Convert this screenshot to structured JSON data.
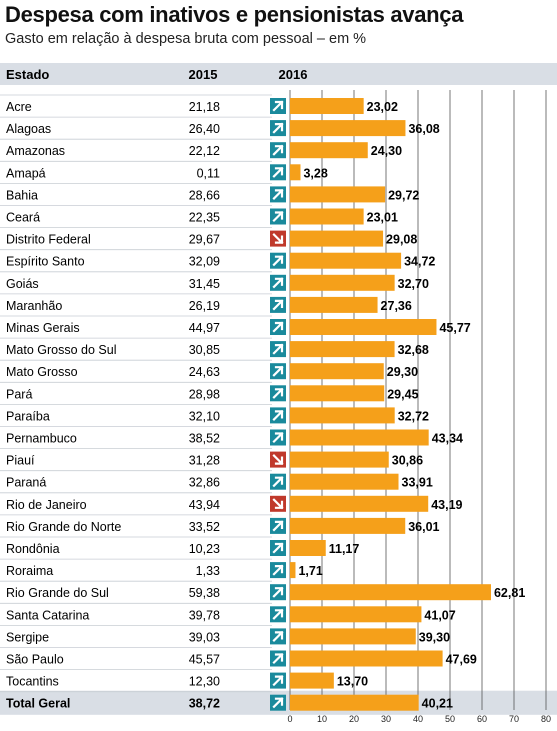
{
  "chart_data": {
    "type": "bar",
    "title": "Despesa com inativos e pensionistas avança",
    "subtitle": "Gasto em relação à despesa bruta com pessoal – em %",
    "columns": {
      "state": "Estado",
      "y2015": "2015",
      "y2016": "2016"
    },
    "xlim": [
      0,
      80
    ],
    "xticks": [
      "0",
      "10",
      "20",
      "30",
      "40",
      "50",
      "60",
      "70",
      "80"
    ],
    "grid": true,
    "colors": {
      "bar": "#f5a01a",
      "up": "#1a8a9c",
      "down": "#c0392b",
      "header_bg": "#d9dee5",
      "total_bg": "#d9dee5"
    },
    "rows": [
      {
        "state": "Acre",
        "v2015": 21.18,
        "v2015_label": "21,18",
        "v2016": 23.02,
        "v2016_label": "23,02",
        "trend": "up"
      },
      {
        "state": "Alagoas",
        "v2015": 26.4,
        "v2015_label": "26,40",
        "v2016": 36.08,
        "v2016_label": "36,08",
        "trend": "up"
      },
      {
        "state": "Amazonas",
        "v2015": 22.12,
        "v2015_label": "22,12",
        "v2016": 24.3,
        "v2016_label": "24,30",
        "trend": "up"
      },
      {
        "state": "Amapá",
        "v2015": 0.11,
        "v2015_label": "0,11",
        "v2016": 3.28,
        "v2016_label": "3,28",
        "trend": "up"
      },
      {
        "state": "Bahia",
        "v2015": 28.66,
        "v2015_label": "28,66",
        "v2016": 29.72,
        "v2016_label": "29,72",
        "trend": "up"
      },
      {
        "state": "Ceará",
        "v2015": 22.35,
        "v2015_label": "22,35",
        "v2016": 23.01,
        "v2016_label": "23,01",
        "trend": "up"
      },
      {
        "state": "Distrito Federal",
        "v2015": 29.67,
        "v2015_label": "29,67",
        "v2016": 29.08,
        "v2016_label": "29,08",
        "trend": "down"
      },
      {
        "state": "Espírito Santo",
        "v2015": 32.09,
        "v2015_label": "32,09",
        "v2016": 34.72,
        "v2016_label": "34,72",
        "trend": "up"
      },
      {
        "state": "Goiás",
        "v2015": 31.45,
        "v2015_label": "31,45",
        "v2016": 32.7,
        "v2016_label": "32,70",
        "trend": "up"
      },
      {
        "state": "Maranhão",
        "v2015": 26.19,
        "v2015_label": "26,19",
        "v2016": 27.36,
        "v2016_label": "27,36",
        "trend": "up"
      },
      {
        "state": "Minas Gerais",
        "v2015": 44.97,
        "v2015_label": "44,97",
        "v2016": 45.77,
        "v2016_label": "45,77",
        "trend": "up"
      },
      {
        "state": "Mato Grosso do Sul",
        "v2015": 30.85,
        "v2015_label": "30,85",
        "v2016": 32.68,
        "v2016_label": "32,68",
        "trend": "up"
      },
      {
        "state": "Mato Grosso",
        "v2015": 24.63,
        "v2015_label": "24,63",
        "v2016": 29.3,
        "v2016_label": "29,30",
        "trend": "up"
      },
      {
        "state": "Pará",
        "v2015": 28.98,
        "v2015_label": "28,98",
        "v2016": 29.45,
        "v2016_label": "29,45",
        "trend": "up"
      },
      {
        "state": "Paraíba",
        "v2015": 32.1,
        "v2015_label": "32,10",
        "v2016": 32.72,
        "v2016_label": "32,72",
        "trend": "up"
      },
      {
        "state": "Pernambuco",
        "v2015": 38.52,
        "v2015_label": "38,52",
        "v2016": 43.34,
        "v2016_label": "43,34",
        "trend": "up"
      },
      {
        "state": "Piauí",
        "v2015": 31.28,
        "v2015_label": "31,28",
        "v2016": 30.86,
        "v2016_label": "30,86",
        "trend": "down"
      },
      {
        "state": "Paraná",
        "v2015": 32.86,
        "v2015_label": "32,86",
        "v2016": 33.91,
        "v2016_label": "33,91",
        "trend": "up"
      },
      {
        "state": "Rio de Janeiro",
        "v2015": 43.94,
        "v2015_label": "43,94",
        "v2016": 43.19,
        "v2016_label": "43,19",
        "trend": "down"
      },
      {
        "state": "Rio Grande do Norte",
        "v2015": 33.52,
        "v2015_label": "33,52",
        "v2016": 36.01,
        "v2016_label": "36,01",
        "trend": "up"
      },
      {
        "state": "Rondônia",
        "v2015": 10.23,
        "v2015_label": "10,23",
        "v2016": 11.17,
        "v2016_label": "11,17",
        "trend": "up"
      },
      {
        "state": "Roraima",
        "v2015": 1.33,
        "v2015_label": "1,33",
        "v2016": 1.71,
        "v2016_label": "1,71",
        "trend": "up"
      },
      {
        "state": "Rio Grande do Sul",
        "v2015": 59.38,
        "v2015_label": "59,38",
        "v2016": 62.81,
        "v2016_label": "62,81",
        "trend": "up"
      },
      {
        "state": "Santa Catarina",
        "v2015": 39.78,
        "v2015_label": "39,78",
        "v2016": 41.07,
        "v2016_label": "41,07",
        "trend": "up"
      },
      {
        "state": "Sergipe",
        "v2015": 39.03,
        "v2015_label": "39,03",
        "v2016": 39.3,
        "v2016_label": "39,30",
        "trend": "up"
      },
      {
        "state": "São Paulo",
        "v2015": 45.57,
        "v2015_label": "45,57",
        "v2016": 47.69,
        "v2016_label": "47,69",
        "trend": "up"
      },
      {
        "state": "Tocantins",
        "v2015": 12.3,
        "v2015_label": "12,30",
        "v2016": 13.7,
        "v2016_label": "13,70",
        "trend": "up"
      }
    ],
    "total": {
      "state": "Total Geral",
      "v2015": 38.72,
      "v2015_label": "38,72",
      "v2016": 40.21,
      "v2016_label": "40,21",
      "trend": "up"
    }
  }
}
